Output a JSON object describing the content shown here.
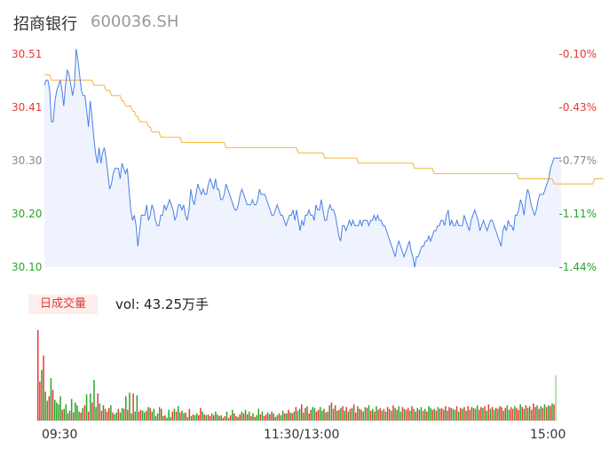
{
  "header": {
    "name": "招商银行",
    "code": "600036.SH"
  },
  "volume_panel": {
    "tab_label": "日成交量",
    "vol_text": "vol: 43.25万手"
  },
  "colors": {
    "price": "#4a7fe8",
    "avg": "#f2b63c",
    "up": "#e53935",
    "down": "#2aa52a",
    "area": "#eef3fd",
    "up_text": "#e53935",
    "neutral_text": "#888888",
    "down_text": "#2aa52a"
  },
  "chart_data": {
    "type": "line",
    "title": "",
    "y_left_ticks": [
      "30.51",
      "30.41",
      "30.30",
      "30.20",
      "30.10"
    ],
    "y_right_ticks": [
      "-0.10%",
      "-0.43%",
      "-0.77%",
      "-1.11%",
      "-1.44%"
    ],
    "ylim": [
      30.1,
      30.51
    ],
    "x_tick_labels": [
      "09:30",
      "11:30/13:00",
      "15:00"
    ],
    "price": [
      30.45,
      30.46,
      30.46,
      30.44,
      30.38,
      30.38,
      30.42,
      30.44,
      30.45,
      30.46,
      30.44,
      30.41,
      30.45,
      30.48,
      30.47,
      30.45,
      30.43,
      30.45,
      30.52,
      30.5,
      30.47,
      30.44,
      30.43,
      30.43,
      30.4,
      30.37,
      30.42,
      30.39,
      30.35,
      30.32,
      30.3,
      30.33,
      30.3,
      30.32,
      30.33,
      30.31,
      30.28,
      30.25,
      30.26,
      30.28,
      30.29,
      30.29,
      30.29,
      30.27,
      30.3,
      30.29,
      30.28,
      30.29,
      30.25,
      30.21,
      30.19,
      30.2,
      30.18,
      30.14,
      30.17,
      30.2,
      30.2,
      30.2,
      30.22,
      30.19,
      30.2,
      30.22,
      30.21,
      30.19,
      30.18,
      30.18,
      30.2,
      30.2,
      30.22,
      30.21,
      30.22,
      30.23,
      30.22,
      30.21,
      30.19,
      30.2,
      30.22,
      30.22,
      30.21,
      30.22,
      30.2,
      30.19,
      30.21,
      30.25,
      30.23,
      30.22,
      30.24,
      30.26,
      30.25,
      30.24,
      30.25,
      30.24,
      30.24,
      30.26,
      30.27,
      30.26,
      30.25,
      30.27,
      30.25,
      30.25,
      30.23,
      30.23,
      30.24,
      30.26,
      30.25,
      30.24,
      30.23,
      30.22,
      30.21,
      30.21,
      30.22,
      30.24,
      30.25,
      30.24,
      30.23,
      30.22,
      30.22,
      30.22,
      30.23,
      30.22,
      30.22,
      30.23,
      30.25,
      30.24,
      30.24,
      30.24,
      30.23,
      30.22,
      30.21,
      30.2,
      30.2,
      30.21,
      30.22,
      30.21,
      30.2,
      30.2,
      30.19,
      30.18,
      30.19,
      30.2,
      30.2,
      30.21,
      30.19,
      30.21,
      30.19,
      30.17,
      30.19,
      30.18,
      30.2,
      30.2,
      30.21,
      30.2,
      30.2,
      30.19,
      30.22,
      30.21,
      30.21,
      30.23,
      30.21,
      30.19,
      30.19,
      30.21,
      30.22,
      30.21,
      30.21,
      30.2,
      30.18,
      30.16,
      30.15,
      30.18,
      30.18,
      30.17,
      30.18,
      30.19,
      30.18,
      30.19,
      30.18,
      30.18,
      30.18,
      30.19,
      30.18,
      30.19,
      30.19,
      30.19,
      30.18,
      30.19,
      30.19,
      30.2,
      30.19,
      30.2,
      30.19,
      30.19,
      30.18,
      30.18,
      30.17,
      30.16,
      30.15,
      30.14,
      30.13,
      30.12,
      30.14,
      30.15,
      30.14,
      30.13,
      30.12,
      30.13,
      30.14,
      30.15,
      30.13,
      30.12,
      30.1,
      30.12,
      30.12,
      30.13,
      30.14,
      30.14,
      30.15,
      30.15,
      30.16,
      30.15,
      30.16,
      30.17,
      30.17,
      30.18,
      30.18,
      30.19,
      30.19,
      30.18,
      30.2,
      30.21,
      30.18,
      30.19,
      30.18,
      30.18,
      30.19,
      30.18,
      30.18,
      30.18,
      30.2,
      30.19,
      30.18,
      30.17,
      30.19,
      30.2,
      30.21,
      30.2,
      30.19,
      30.17,
      30.18,
      30.19,
      30.18,
      30.17,
      30.18,
      30.19,
      30.19,
      30.18,
      30.17,
      30.16,
      30.15,
      30.14,
      30.17,
      30.18,
      30.17,
      30.19,
      30.18,
      30.18,
      30.17,
      30.2,
      30.2,
      30.21,
      30.23,
      30.22,
      30.2,
      30.23,
      30.25,
      30.24,
      30.22,
      30.21,
      30.2,
      30.21,
      30.23,
      30.24,
      30.24,
      30.24,
      30.25,
      30.26,
      30.27,
      30.29,
      30.3,
      30.31,
      30.31,
      30.31,
      30.31,
      30.31
    ],
    "avg_price": [
      30.47,
      30.47,
      30.47,
      30.47,
      30.46,
      30.46,
      30.46,
      30.46,
      30.46,
      30.46,
      30.46,
      30.46,
      30.46,
      30.46,
      30.46,
      30.46,
      30.46,
      30.46,
      30.46,
      30.46,
      30.46,
      30.46,
      30.46,
      30.46,
      30.46,
      30.46,
      30.46,
      30.46,
      30.45,
      30.45,
      30.45,
      30.45,
      30.45,
      30.45,
      30.45,
      30.44,
      30.44,
      30.44,
      30.43,
      30.43,
      30.43,
      30.43,
      30.43,
      30.43,
      30.42,
      30.42,
      30.41,
      30.41,
      30.41,
      30.41,
      30.4,
      30.4,
      30.39,
      30.39,
      30.38,
      30.38,
      30.38,
      30.38,
      30.38,
      30.37,
      30.37,
      30.36,
      30.36,
      30.36,
      30.36,
      30.36,
      30.35,
      30.35,
      30.35,
      30.35,
      30.35,
      30.35,
      30.35,
      30.35,
      30.35,
      30.35,
      30.35,
      30.35,
      30.34,
      30.34,
      30.34,
      30.34,
      30.34,
      30.34,
      30.34,
      30.34,
      30.34,
      30.34,
      30.34,
      30.34,
      30.34,
      30.34,
      30.34,
      30.34,
      30.34,
      30.34,
      30.34,
      30.34,
      30.34,
      30.34,
      30.34,
      30.34,
      30.34,
      30.33,
      30.33,
      30.33,
      30.33,
      30.33,
      30.33,
      30.33,
      30.33,
      30.33,
      30.33,
      30.33,
      30.33,
      30.33,
      30.33,
      30.33,
      30.33,
      30.33,
      30.33,
      30.33,
      30.33,
      30.33,
      30.33,
      30.33,
      30.33,
      30.33,
      30.33,
      30.33,
      30.33,
      30.33,
      30.33,
      30.33,
      30.33,
      30.33,
      30.33,
      30.33,
      30.33,
      30.33,
      30.33,
      30.33,
      30.33,
      30.33,
      30.32,
      30.32,
      30.32,
      30.32,
      30.32,
      30.32,
      30.32,
      30.32,
      30.32,
      30.32,
      30.32,
      30.32,
      30.32,
      30.32,
      30.32,
      30.31,
      30.31,
      30.31,
      30.31,
      30.31,
      30.31,
      30.31,
      30.31,
      30.31,
      30.31,
      30.31,
      30.31,
      30.31,
      30.31,
      30.31,
      30.31,
      30.31,
      30.31,
      30.31,
      30.3,
      30.3,
      30.3,
      30.3,
      30.3,
      30.3,
      30.3,
      30.3,
      30.3,
      30.3,
      30.3,
      30.3,
      30.3,
      30.3,
      30.3,
      30.3,
      30.3,
      30.3,
      30.3,
      30.3,
      30.3,
      30.3,
      30.3,
      30.3,
      30.3,
      30.3,
      30.3,
      30.3,
      30.3,
      30.3,
      30.3,
      30.3,
      30.29,
      30.29,
      30.29,
      30.29,
      30.29,
      30.29,
      30.29,
      30.29,
      30.29,
      30.29,
      30.29,
      30.28,
      30.28,
      30.28,
      30.28,
      30.28,
      30.28,
      30.28,
      30.28,
      30.28,
      30.28,
      30.28,
      30.28,
      30.28,
      30.28,
      30.28,
      30.28,
      30.28,
      30.28,
      30.28,
      30.28,
      30.28,
      30.28,
      30.28,
      30.28,
      30.28,
      30.28,
      30.28,
      30.28,
      30.28,
      30.28,
      30.28,
      30.28,
      30.28,
      30.28,
      30.28,
      30.28,
      30.28,
      30.28,
      30.28,
      30.28,
      30.28,
      30.28,
      30.28,
      30.28,
      30.28,
      30.28,
      30.28,
      30.28,
      30.27,
      30.27,
      30.27,
      30.27,
      30.27,
      30.27,
      30.27,
      30.27,
      30.27,
      30.27,
      30.27,
      30.27,
      30.27,
      30.27,
      30.27,
      30.27,
      30.27,
      30.27,
      30.27,
      30.27,
      30.26,
      30.26,
      30.26,
      30.26,
      30.26,
      30.26,
      30.26,
      30.26,
      30.26,
      30.26,
      30.26,
      30.26,
      30.26,
      30.26,
      30.26,
      30.26,
      30.26,
      30.26,
      30.26,
      30.26,
      30.26,
      30.26,
      30.26,
      30.27,
      30.27,
      30.27,
      30.27,
      30.27,
      30.27
    ],
    "volume": [
      100,
      43,
      56,
      72,
      32,
      22,
      27,
      47,
      34,
      23,
      20,
      18,
      27,
      12,
      13,
      18,
      8,
      11,
      24,
      9,
      20,
      17,
      10,
      9,
      14,
      17,
      29,
      10,
      30,
      20,
      45,
      15,
      30,
      19,
      11,
      17,
      13,
      10,
      14,
      17,
      9,
      7,
      9,
      13,
      9,
      14,
      13,
      27,
      12,
      31,
      8,
      30,
      10,
      28,
      10,
      12,
      11,
      9,
      11,
      15,
      14,
      10,
      13,
      5,
      8,
      15,
      13,
      5,
      6,
      3,
      12,
      4,
      10,
      13,
      10,
      16,
      9,
      11,
      8,
      9,
      4,
      13,
      5,
      7,
      6,
      8,
      6,
      14,
      10,
      7,
      6,
      7,
      5,
      8,
      6,
      10,
      7,
      5,
      6,
      3,
      5,
      10,
      3,
      6,
      12,
      8,
      5,
      4,
      7,
      10,
      8,
      12,
      7,
      10,
      5,
      8,
      4,
      6,
      13,
      7,
      10,
      5,
      7,
      9,
      7,
      10,
      8,
      4,
      6,
      8,
      6,
      11,
      8,
      8,
      12,
      9,
      8,
      10,
      15,
      11,
      13,
      18,
      9,
      14,
      16,
      8,
      12,
      15,
      14,
      10,
      12,
      15,
      11,
      13,
      9,
      10,
      17,
      20,
      13,
      17,
      11,
      12,
      14,
      16,
      11,
      15,
      10,
      13,
      14,
      18,
      9,
      16,
      13,
      12,
      10,
      15,
      14,
      17,
      11,
      13,
      10,
      16,
      12,
      14,
      11,
      13,
      10,
      15,
      13,
      11,
      17,
      14,
      12,
      16,
      10,
      15,
      13,
      12,
      14,
      11,
      16,
      13,
      10,
      14,
      12,
      15,
      11,
      13,
      10,
      16,
      14,
      12,
      13,
      11,
      15,
      13,
      14,
      12,
      16,
      11,
      15,
      14,
      13,
      12,
      16,
      10,
      14,
      13,
      15,
      11,
      16,
      12,
      15,
      14,
      13,
      17,
      12,
      15,
      14,
      16,
      11,
      18,
      13,
      15,
      12,
      14,
      13,
      16,
      15,
      11,
      14,
      17,
      12,
      15,
      13,
      16,
      14,
      12,
      18,
      15,
      13,
      17,
      14,
      16,
      12,
      19,
      15,
      17,
      13,
      16,
      14,
      18,
      15,
      17,
      16,
      19,
      18,
      50
    ],
    "volume_dir": [
      "u",
      "u",
      "d",
      "u",
      "d",
      "d",
      "u",
      "d",
      "u",
      "d",
      "d",
      "d",
      "d",
      "u",
      "d",
      "d",
      "u",
      "d",
      "d",
      "u",
      "d",
      "d",
      "d",
      "u",
      "d",
      "u",
      "d",
      "u",
      "d",
      "u",
      "d",
      "d",
      "u",
      "d",
      "u",
      "u",
      "d",
      "u",
      "u",
      "d",
      "u",
      "d",
      "d",
      "u",
      "d",
      "d",
      "u",
      "d",
      "u",
      "d",
      "d",
      "u",
      "d",
      "d",
      "u",
      "u",
      "d",
      "d",
      "u",
      "d",
      "u",
      "d",
      "d",
      "u",
      "d",
      "d",
      "u",
      "d",
      "u",
      "d",
      "d",
      "d",
      "u",
      "d",
      "u",
      "d",
      "u",
      "d",
      "d",
      "u",
      "d",
      "u",
      "d",
      "u",
      "d",
      "d",
      "u",
      "u",
      "d",
      "u",
      "d",
      "u",
      "u",
      "d",
      "u",
      "d",
      "d",
      "u",
      "d",
      "u",
      "u",
      "d",
      "u",
      "u",
      "d",
      "u",
      "d",
      "u",
      "u",
      "d",
      "u",
      "d",
      "u",
      "d",
      "u",
      "d",
      "u",
      "d",
      "d",
      "u",
      "d",
      "u",
      "u",
      "d",
      "u",
      "d",
      "u",
      "u",
      "d",
      "u",
      "d",
      "d",
      "u",
      "d",
      "u",
      "d",
      "u",
      "d",
      "u",
      "d",
      "d",
      "u",
      "d",
      "u",
      "d",
      "u",
      "u",
      "d",
      "d",
      "u",
      "u",
      "d",
      "d",
      "u",
      "d",
      "u",
      "d",
      "u",
      "d",
      "u",
      "d",
      "u",
      "d",
      "u",
      "d",
      "u",
      "d",
      "u",
      "d",
      "u",
      "u",
      "d",
      "u",
      "u",
      "d",
      "d",
      "u",
      "d",
      "u",
      "d",
      "u",
      "d",
      "u",
      "u",
      "d",
      "u",
      "d",
      "u",
      "u",
      "d",
      "u",
      "d",
      "u",
      "d",
      "d",
      "u",
      "d",
      "u",
      "u",
      "d",
      "u",
      "d",
      "u",
      "d",
      "u",
      "d",
      "u",
      "d",
      "u",
      "d",
      "d",
      "u",
      "d",
      "u",
      "d",
      "u",
      "u",
      "d",
      "u",
      "d",
      "u",
      "u",
      "d",
      "d",
      "u",
      "d",
      "u",
      "d",
      "u",
      "d",
      "u",
      "u",
      "d",
      "u",
      "d",
      "d",
      "u",
      "u",
      "d",
      "u",
      "d",
      "u",
      "d",
      "u",
      "d",
      "u",
      "d",
      "u",
      "u",
      "d",
      "u",
      "d",
      "d",
      "u",
      "u",
      "d",
      "u",
      "u",
      "d",
      "u",
      "d",
      "u",
      "d",
      "u",
      "d",
      "u",
      "u",
      "d",
      "u",
      "d",
      "u",
      "d",
      "u",
      "d",
      "u",
      "d",
      "u",
      "d",
      "u",
      "u",
      "u",
      "u"
    ]
  }
}
